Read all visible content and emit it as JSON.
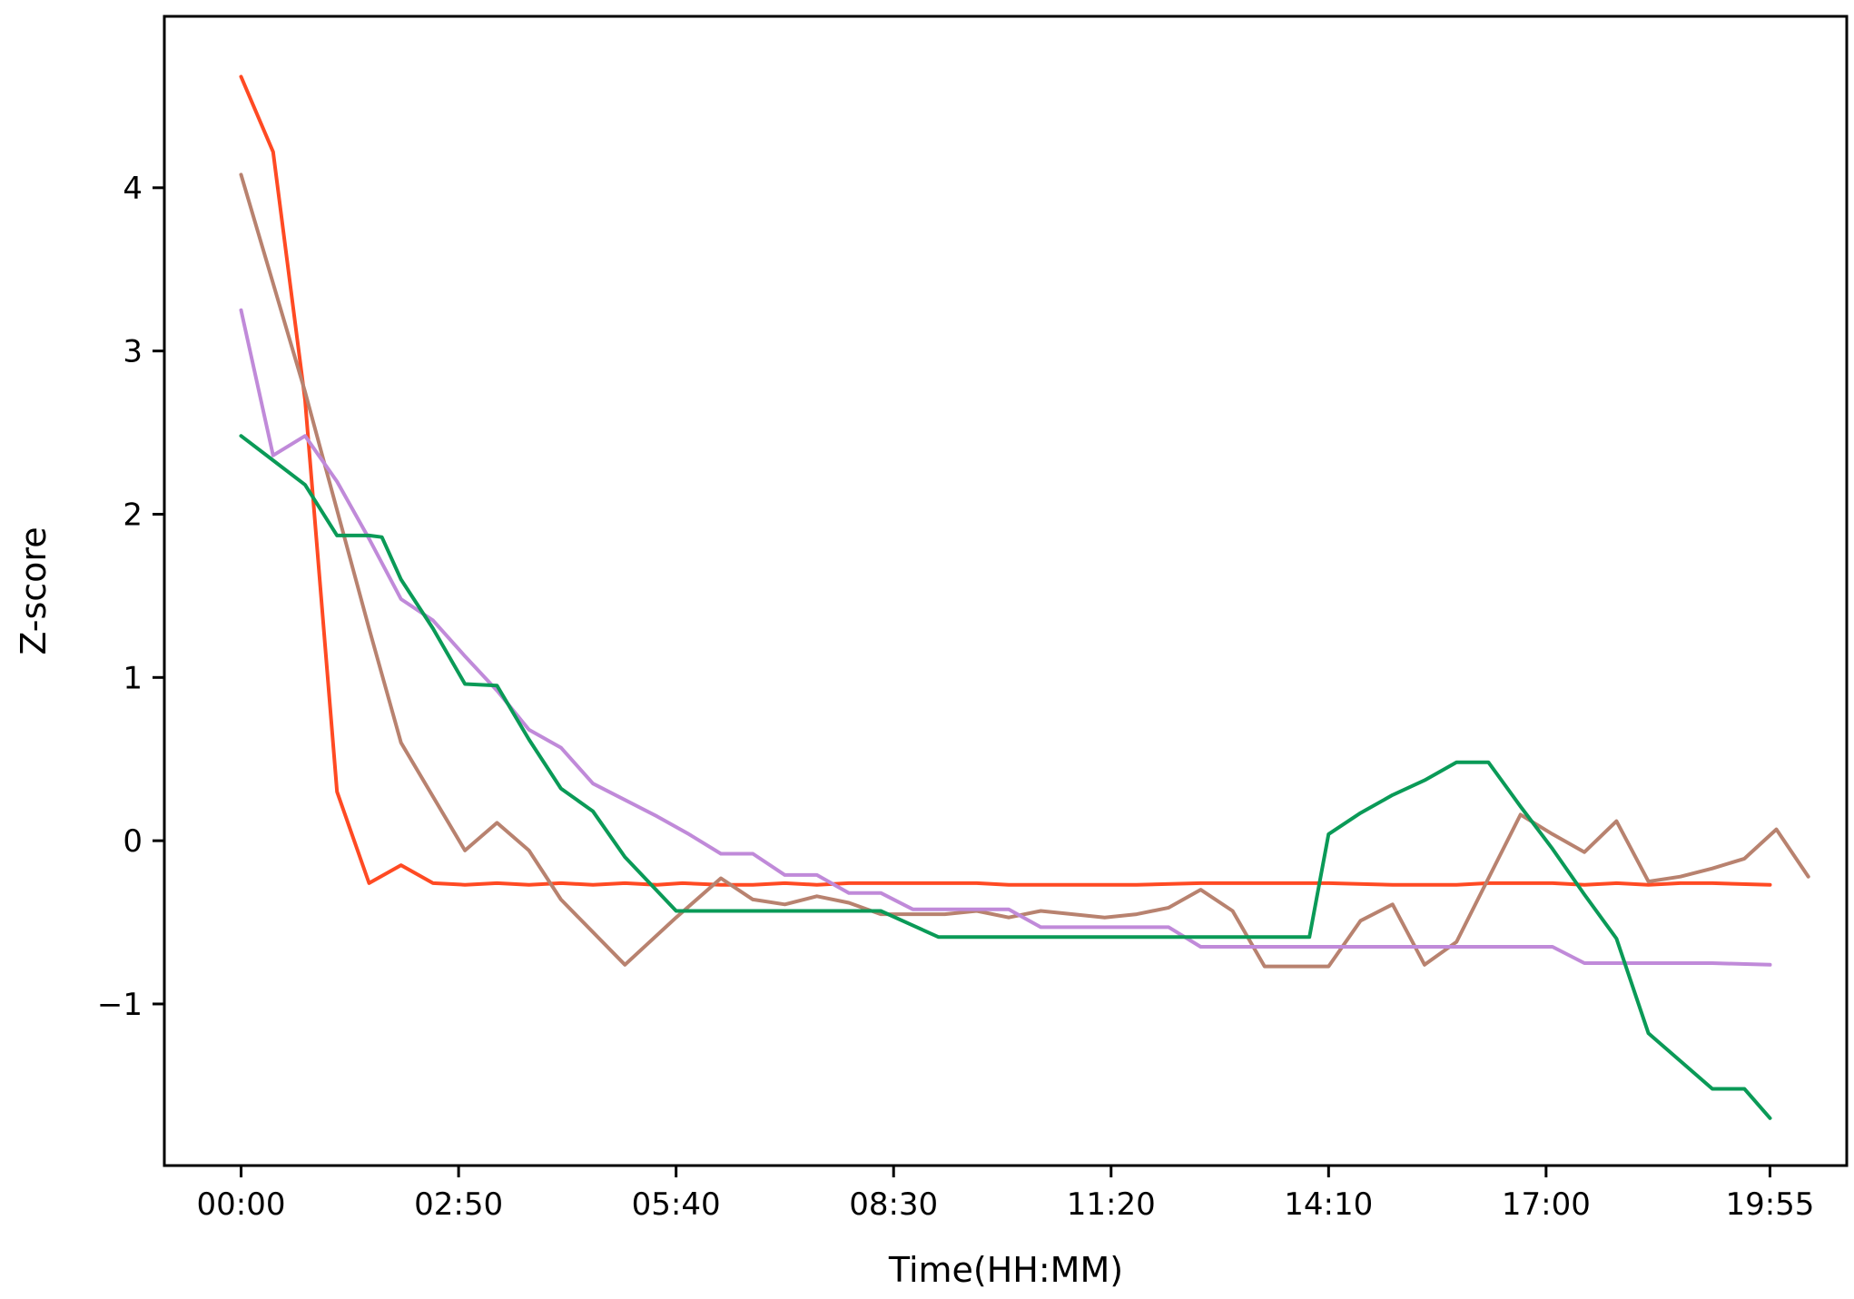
{
  "chart_data": {
    "type": "line",
    "title": "",
    "xlabel": "Time(HH:MM)",
    "ylabel": "Z-score",
    "x_unit": "minutes",
    "xlim": [
      -60,
      1255
    ],
    "ylim": [
      -1.99,
      5.05
    ],
    "x_ticks": [
      {
        "value": 0,
        "label": "00:00"
      },
      {
        "value": 170,
        "label": "02:50"
      },
      {
        "value": 340,
        "label": "05:40"
      },
      {
        "value": 510,
        "label": "08:30"
      },
      {
        "value": 680,
        "label": "11:20"
      },
      {
        "value": 850,
        "label": "14:10"
      },
      {
        "value": 1020,
        "label": "17:00"
      },
      {
        "value": 1195,
        "label": "19:55"
      }
    ],
    "y_ticks": [
      {
        "value": -1,
        "label": "−1"
      },
      {
        "value": 0,
        "label": "0"
      },
      {
        "value": 1,
        "label": "1"
      },
      {
        "value": 2,
        "label": "2"
      },
      {
        "value": 3,
        "label": "3"
      },
      {
        "value": 4,
        "label": "4"
      }
    ],
    "grid": false,
    "legend": "none",
    "series": [
      {
        "color": "#ff4a23",
        "points": [
          [
            0,
            4.68
          ],
          [
            25,
            4.22
          ],
          [
            50,
            2.7
          ],
          [
            75,
            0.3
          ],
          [
            100,
            -0.26
          ],
          [
            125,
            -0.15
          ],
          [
            150,
            -0.26
          ],
          [
            175,
            -0.27
          ],
          [
            200,
            -0.26
          ],
          [
            225,
            -0.27
          ],
          [
            250,
            -0.26
          ],
          [
            275,
            -0.27
          ],
          [
            300,
            -0.26
          ],
          [
            325,
            -0.27
          ],
          [
            345,
            -0.26
          ],
          [
            375,
            -0.27
          ],
          [
            400,
            -0.27
          ],
          [
            425,
            -0.26
          ],
          [
            450,
            -0.27
          ],
          [
            475,
            -0.26
          ],
          [
            500,
            -0.26
          ],
          [
            525,
            -0.26
          ],
          [
            550,
            -0.26
          ],
          [
            575,
            -0.26
          ],
          [
            600,
            -0.27
          ],
          [
            650,
            -0.27
          ],
          [
            700,
            -0.27
          ],
          [
            750,
            -0.26
          ],
          [
            800,
            -0.26
          ],
          [
            850,
            -0.26
          ],
          [
            900,
            -0.27
          ],
          [
            950,
            -0.27
          ],
          [
            975,
            -0.26
          ],
          [
            1000,
            -0.26
          ],
          [
            1025,
            -0.26
          ],
          [
            1050,
            -0.27
          ],
          [
            1075,
            -0.26
          ],
          [
            1100,
            -0.27
          ],
          [
            1125,
            -0.26
          ],
          [
            1150,
            -0.26
          ],
          [
            1195,
            -0.27
          ]
        ]
      },
      {
        "color": "#b8826f",
        "points": [
          [
            0,
            4.08
          ],
          [
            50,
            2.75
          ],
          [
            100,
            1.3
          ],
          [
            125,
            0.6
          ],
          [
            175,
            -0.06
          ],
          [
            200,
            0.11
          ],
          [
            225,
            -0.06
          ],
          [
            250,
            -0.36
          ],
          [
            300,
            -0.76
          ],
          [
            340,
            -0.47
          ],
          [
            375,
            -0.23
          ],
          [
            400,
            -0.36
          ],
          [
            425,
            -0.39
          ],
          [
            450,
            -0.34
          ],
          [
            475,
            -0.38
          ],
          [
            500,
            -0.45
          ],
          [
            525,
            -0.45
          ],
          [
            550,
            -0.45
          ],
          [
            575,
            -0.43
          ],
          [
            600,
            -0.47
          ],
          [
            625,
            -0.43
          ],
          [
            650,
            -0.45
          ],
          [
            675,
            -0.47
          ],
          [
            700,
            -0.45
          ],
          [
            725,
            -0.41
          ],
          [
            750,
            -0.3
          ],
          [
            775,
            -0.43
          ],
          [
            800,
            -0.77
          ],
          [
            825,
            -0.77
          ],
          [
            850,
            -0.77
          ],
          [
            875,
            -0.49
          ],
          [
            900,
            -0.39
          ],
          [
            925,
            -0.76
          ],
          [
            950,
            -0.62
          ],
          [
            975,
            -0.23
          ],
          [
            1000,
            0.16
          ],
          [
            1025,
            0.04
          ],
          [
            1050,
            -0.07
          ],
          [
            1075,
            0.12
          ],
          [
            1100,
            -0.25
          ],
          [
            1125,
            -0.22
          ],
          [
            1150,
            -0.17
          ],
          [
            1175,
            -0.11
          ],
          [
            1200,
            0.07
          ],
          [
            1225,
            -0.22
          ]
        ]
      },
      {
        "color": "#c08ad9",
        "points": [
          [
            0,
            3.25
          ],
          [
            25,
            2.36
          ],
          [
            50,
            2.48
          ],
          [
            75,
            2.2
          ],
          [
            100,
            1.85
          ],
          [
            125,
            1.48
          ],
          [
            150,
            1.35
          ],
          [
            175,
            1.13
          ],
          [
            200,
            0.92
          ],
          [
            225,
            0.68
          ],
          [
            250,
            0.57
          ],
          [
            275,
            0.35
          ],
          [
            300,
            0.25
          ],
          [
            325,
            0.15
          ],
          [
            350,
            0.04
          ],
          [
            375,
            -0.08
          ],
          [
            400,
            -0.08
          ],
          [
            425,
            -0.21
          ],
          [
            450,
            -0.21
          ],
          [
            475,
            -0.32
          ],
          [
            500,
            -0.32
          ],
          [
            525,
            -0.42
          ],
          [
            550,
            -0.42
          ],
          [
            575,
            -0.42
          ],
          [
            600,
            -0.42
          ],
          [
            625,
            -0.53
          ],
          [
            650,
            -0.53
          ],
          [
            700,
            -0.53
          ],
          [
            725,
            -0.53
          ],
          [
            750,
            -0.65
          ],
          [
            800,
            -0.65
          ],
          [
            850,
            -0.65
          ],
          [
            900,
            -0.65
          ],
          [
            950,
            -0.65
          ],
          [
            1000,
            -0.65
          ],
          [
            1025,
            -0.65
          ],
          [
            1050,
            -0.75
          ],
          [
            1100,
            -0.75
          ],
          [
            1150,
            -0.75
          ],
          [
            1195,
            -0.76
          ]
        ]
      },
      {
        "color": "#0a9a57",
        "points": [
          [
            0,
            2.48
          ],
          [
            25,
            2.33
          ],
          [
            50,
            2.18
          ],
          [
            75,
            1.87
          ],
          [
            100,
            1.87
          ],
          [
            110,
            1.86
          ],
          [
            125,
            1.6
          ],
          [
            150,
            1.3
          ],
          [
            175,
            0.96
          ],
          [
            200,
            0.95
          ],
          [
            225,
            0.62
          ],
          [
            250,
            0.32
          ],
          [
            275,
            0.18
          ],
          [
            300,
            -0.1
          ],
          [
            340,
            -0.43
          ],
          [
            400,
            -0.43
          ],
          [
            450,
            -0.43
          ],
          [
            500,
            -0.43
          ],
          [
            545,
            -0.59
          ],
          [
            600,
            -0.59
          ],
          [
            650,
            -0.59
          ],
          [
            700,
            -0.59
          ],
          [
            750,
            -0.59
          ],
          [
            800,
            -0.59
          ],
          [
            825,
            -0.59
          ],
          [
            835,
            -0.59
          ],
          [
            850,
            0.04
          ],
          [
            875,
            0.17
          ],
          [
            900,
            0.28
          ],
          [
            925,
            0.37
          ],
          [
            950,
            0.48
          ],
          [
            975,
            0.48
          ],
          [
            1000,
            0.21
          ],
          [
            1025,
            -0.05
          ],
          [
            1050,
            -0.33
          ],
          [
            1075,
            -0.6
          ],
          [
            1100,
            -1.18
          ],
          [
            1125,
            -1.35
          ],
          [
            1150,
            -1.52
          ],
          [
            1175,
            -1.52
          ],
          [
            1195,
            -1.7
          ]
        ]
      }
    ]
  }
}
